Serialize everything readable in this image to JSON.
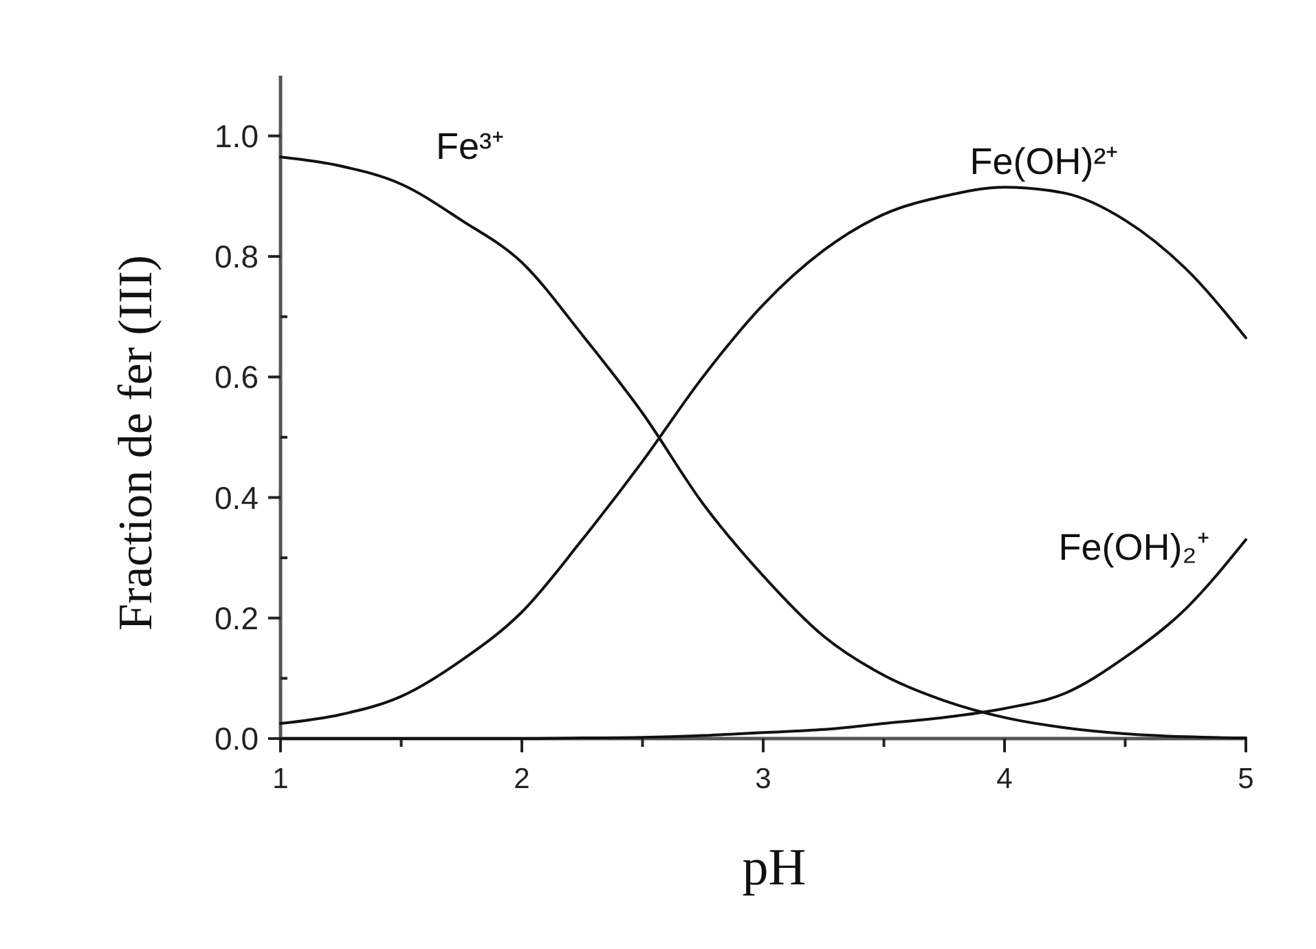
{
  "chart_data": {
    "type": "line",
    "xlabel": "pH",
    "ylabel": "Fraction de fer (III)",
    "x": [
      1,
      1.25,
      1.5,
      1.75,
      2,
      2.25,
      2.5,
      2.75,
      3,
      3.25,
      3.5,
      3.75,
      4,
      4.25,
      4.5,
      4.75,
      5
    ],
    "series": [
      {
        "name": "Fe³⁺",
        "color": "#111111",
        "values": [
          0.965,
          0.95,
          0.92,
          0.86,
          0.79,
          0.67,
          0.54,
          0.39,
          0.27,
          0.17,
          0.105,
          0.063,
          0.035,
          0.018,
          0.008,
          0.003,
          0.001
        ]
      },
      {
        "name": "Fe(OH)²⁺",
        "color": "#111111",
        "values": [
          0.025,
          0.04,
          0.07,
          0.13,
          0.21,
          0.33,
          0.46,
          0.6,
          0.72,
          0.81,
          0.87,
          0.9,
          0.915,
          0.905,
          0.86,
          0.78,
          0.665
        ]
      },
      {
        "name": "Fe(OH)₂⁺",
        "color": "#111111",
        "values": [
          0,
          0,
          0,
          0,
          0,
          0.001,
          0.002,
          0.005,
          0.01,
          0.015,
          0.025,
          0.035,
          0.05,
          0.075,
          0.135,
          0.215,
          0.33
        ]
      }
    ],
    "xlim": [
      1,
      5
    ],
    "xticks": [
      1,
      {
        "value": 1.5,
        "label": null
      },
      2,
      {
        "value": 2.5,
        "label": null
      },
      3,
      {
        "value": 3.5,
        "label": null
      },
      4,
      {
        "value": 4.5,
        "label": null
      },
      5
    ],
    "ylim": [
      0,
      1.1
    ],
    "yticks": [
      {
        "value": 0,
        "label": "0.0"
      },
      {
        "value": 0.1,
        "label": null
      },
      0.2,
      {
        "value": 0.3,
        "label": null
      },
      0.4,
      {
        "value": 0.5,
        "label": null
      },
      0.6,
      {
        "value": 0.7,
        "label": null
      },
      0.8,
      {
        "value": 1,
        "label": "1.0"
      }
    ],
    "line_style": "solid"
  }
}
